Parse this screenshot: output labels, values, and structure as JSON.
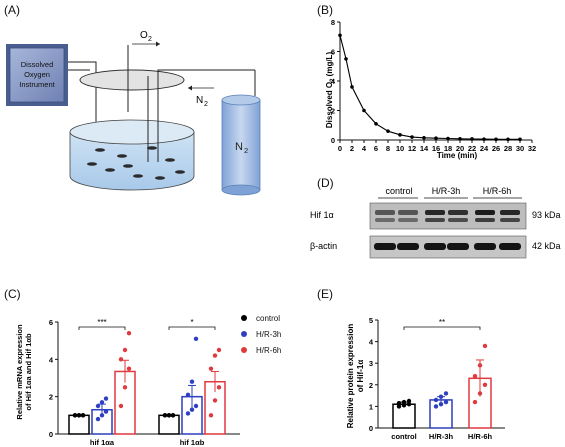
{
  "panels": {
    "A": {
      "letter": "(A)",
      "instrument_label": [
        "Dissolved",
        "Oxygen",
        "Instrument"
      ],
      "o2_label": "O",
      "o2_sub": "2",
      "n2_arrow_label": "N",
      "n2_arrow_sub": "2",
      "cylinder_label": "N",
      "cylinder_sub": "2"
    },
    "B": {
      "letter": "(B)",
      "xlabel": "Time (min)",
      "ylabel_main": "Dissolved O",
      "ylabel_sub": "2",
      "ylabel_unit": " (mg/L)"
    },
    "C": {
      "letter": "(C)",
      "ylabel_line1": "Relative mRNA expression",
      "ylabel_line2": "of Hif 1αa and Hif 1αb"
    },
    "D": {
      "letter": "(D)",
      "groups": [
        "control",
        "H/R-3h",
        "H/R-6h"
      ],
      "rows": [
        {
          "protein": "Hif 1α",
          "size": "93 kDa"
        },
        {
          "protein": "β-actin",
          "size": "42 kDa"
        }
      ]
    },
    "E": {
      "letter": "(E)",
      "ylabel_line1": "Relative protein expression",
      "ylabel_line2": "of Hif-1α"
    }
  },
  "legend": [
    {
      "label": "control",
      "color": "#000000"
    },
    {
      "label": "H/R-3h",
      "color": "#2e3fbf"
    },
    {
      "label": "H/R-6h",
      "color": "#e0393e"
    }
  ],
  "chart_data": [
    {
      "id": "B",
      "type": "line",
      "title": "",
      "xlabel": "Time (min)",
      "ylabel": "Dissolved O2 (mg/L)",
      "xlim": [
        0,
        32
      ],
      "ylim": [
        0,
        8
      ],
      "xticks": [
        0,
        2,
        4,
        6,
        8,
        10,
        12,
        14,
        16,
        18,
        20,
        22,
        24,
        26,
        28,
        30,
        32
      ],
      "yticks": [
        0,
        2,
        4,
        6,
        8
      ],
      "x": [
        0,
        1,
        2,
        4,
        6,
        8,
        10,
        12,
        14,
        16,
        18,
        20,
        22,
        24,
        26,
        28,
        30
      ],
      "y": [
        7.1,
        5.5,
        3.6,
        2.0,
        1.1,
        0.6,
        0.35,
        0.2,
        0.15,
        0.12,
        0.1,
        0.08,
        0.07,
        0.06,
        0.05,
        0.05,
        0.05
      ],
      "color": "#000000"
    },
    {
      "id": "C",
      "type": "bar",
      "title": "",
      "xlabel": "",
      "ylabel": "Relative mRNA expression of Hif 1αa and Hif 1αb",
      "ylim": [
        0,
        6
      ],
      "yticks": [
        0,
        2,
        4,
        6
      ],
      "categories": [
        "hif 1αa",
        "hif 1αb"
      ],
      "series": [
        {
          "name": "control",
          "color": "#000000",
          "values": [
            1.0,
            1.0
          ],
          "errors": [
            0.0,
            0.0
          ],
          "points": [
            [
              1.0,
              1.0,
              1.0,
              1.0,
              1.0,
              1.0
            ],
            [
              1.0,
              1.0,
              1.0,
              1.0,
              1.0,
              1.0
            ]
          ]
        },
        {
          "name": "H/R-3h",
          "color": "#2e3fbf",
          "values": [
            1.3,
            2.0
          ],
          "errors": [
            0.3,
            0.6
          ],
          "points": [
            [
              0.8,
              1.0,
              1.2,
              1.5,
              1.7,
              1.9
            ],
            [
              1.1,
              1.3,
              1.5,
              2.1,
              2.8,
              5.1
            ]
          ]
        },
        {
          "name": "H/R-6h",
          "color": "#e0393e",
          "values": [
            3.35,
            2.8
          ],
          "errors": [
            0.6,
            0.55
          ],
          "points": [
            [
              1.5,
              2.5,
              3.5,
              4.0,
              4.5,
              5.4
            ],
            [
              1.0,
              1.8,
              2.5,
              3.5,
              4.2,
              4.5
            ]
          ]
        }
      ],
      "significance": [
        {
          "category": "hif 1αa",
          "label": "***"
        },
        {
          "category": "hif 1αb",
          "label": "*"
        }
      ],
      "legend_position": "right"
    },
    {
      "id": "E",
      "type": "bar",
      "title": "",
      "xlabel": "",
      "ylabel": "Relative protein expression of Hif-1α",
      "ylim": [
        0,
        5
      ],
      "yticks": [
        0,
        1,
        2,
        3,
        4,
        5
      ],
      "categories": [
        "control",
        "H/R-3h",
        "H/R-6h"
      ],
      "colors": [
        "#000000",
        "#2e3fbf",
        "#e0393e"
      ],
      "values": [
        1.1,
        1.3,
        2.3
      ],
      "errors": [
        0.1,
        0.15,
        0.85
      ],
      "points": [
        [
          1.0,
          1.05,
          1.1,
          1.15,
          1.2,
          1.25
        ],
        [
          1.0,
          1.1,
          1.2,
          1.3,
          1.45,
          1.6
        ],
        [
          1.2,
          1.6,
          2.0,
          2.4,
          2.9,
          3.8
        ]
      ],
      "significance": [
        {
          "from": "control",
          "to": "H/R-6h",
          "label": "**"
        }
      ]
    }
  ]
}
